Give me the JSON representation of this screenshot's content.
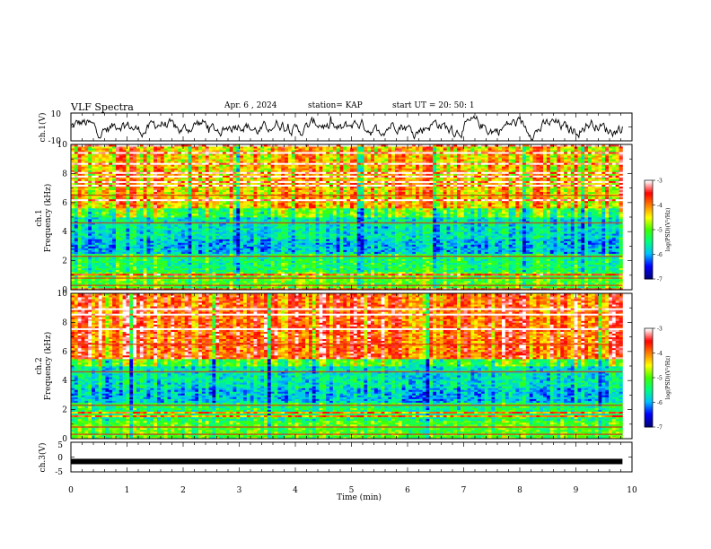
{
  "header": {
    "title": "VLF Spectra",
    "date": "Apr. 6 , 2024",
    "station": "station= KAP",
    "start": "start UT =   20: 50: 1"
  },
  "chart_data": [
    {
      "type": "line",
      "ylabel": "ch.1(V)",
      "ylim": [
        -10,
        10
      ],
      "yticklabels": [
        "10",
        "-10"
      ],
      "xlim": [
        0,
        10
      ]
    },
    {
      "type": "heatmap",
      "ylabel": "ch.1\nFrequency (kHz)",
      "ylim": [
        0,
        10
      ],
      "yticks": [
        0,
        2,
        4,
        6,
        8,
        10
      ],
      "xlim": [
        0,
        10
      ],
      "data_extent_x": [
        0,
        9.83
      ],
      "colorbar": {
        "label": "log(PSD)(V²/Hz)",
        "range": [
          -7,
          -3
        ],
        "ticks": [
          -3,
          -4,
          -5,
          -6,
          -7
        ]
      }
    },
    {
      "type": "heatmap",
      "ylabel": "ch.2\nFrequency (kHz)",
      "ylim": [
        0,
        10
      ],
      "yticks": [
        0,
        2,
        4,
        6,
        8,
        10
      ],
      "xlim": [
        0,
        10
      ],
      "data_extent_x": [
        0,
        9.83
      ],
      "colorbar": {
        "label": "log(PSD)(V²/Hz)",
        "range": [
          -7,
          -3
        ],
        "ticks": [
          -3,
          -4,
          -5,
          -6,
          -7
        ]
      }
    },
    {
      "type": "line",
      "ylabel": "ch.3(V)",
      "ylim": [
        -5,
        5
      ],
      "yticklabels": [
        "5",
        "0",
        "-5"
      ],
      "level": -1.5,
      "xlim": [
        0,
        10
      ]
    }
  ],
  "xaxis": {
    "label": "Time (min)",
    "ticks": [
      "0",
      "1",
      "2",
      "3",
      "4",
      "5",
      "6",
      "7",
      "8",
      "9",
      "10"
    ]
  },
  "colors": {
    "spectrum": [
      "#00007f",
      "#0000ff",
      "#00c0ff",
      "#00ff80",
      "#40ff00",
      "#ffff00",
      "#ff8000",
      "#ff0000",
      "#ffffff"
    ]
  }
}
